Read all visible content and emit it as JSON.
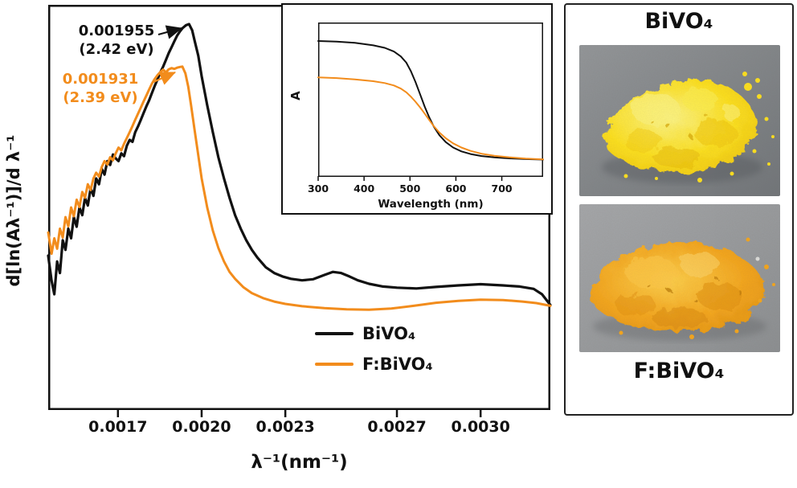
{
  "colors": {
    "black_series": "#111111",
    "orange_series": "#F28C1C",
    "frame": "#111111"
  },
  "main_chart": {
    "ylabel": "d[ln(Aλ⁻¹)]/d λ⁻¹",
    "xlabel": "λ⁻¹(nm⁻¹)",
    "annotations": {
      "black_peak_value": "0.001955",
      "black_peak_ev": "(2.42 eV)",
      "orange_peak_value": "0.001931",
      "orange_peak_ev": "(2.39 eV)"
    }
  },
  "inset_chart": {
    "ylabel": "A",
    "xlabel": "Wavelength (nm)"
  },
  "photo_panel": {
    "top_label": "BiVO₄",
    "bottom_label": "F:BiVO₄",
    "photos": [
      {
        "name": "BiVO₄ powder",
        "powder_color": "#FFE21E",
        "background_color": "#85888B"
      },
      {
        "name": "F:BiVO₄ powder",
        "powder_color": "#F5A51A",
        "background_color": "#97999C"
      }
    ]
  },
  "chart_data": [
    {
      "id": "main",
      "type": "line",
      "title": "",
      "xlabel": "λ⁻¹(nm⁻¹)",
      "ylabel": "d[ln(Aλ⁻¹)]/d λ⁻¹",
      "xlim": [
        0.00145,
        0.00325
      ],
      "ylim": [
        0,
        1.05
      ],
      "xticks": [
        0.0017,
        0.002,
        0.0023,
        0.0027,
        0.003
      ],
      "xtick_labels": [
        "0.0017",
        "0.0020",
        "0.0023",
        "0.0027",
        "0.0030"
      ],
      "grid": false,
      "legend_position": "inside lower right",
      "peaks": {
        "black": {
          "x": 0.001955,
          "band_gap_ev": 2.42
        },
        "orange": {
          "x": 0.001931,
          "band_gap_ev": 2.39
        }
      },
      "series": [
        {
          "name": "BiVO₄",
          "color": "#111111",
          "width": 3.2,
          "points": [
            [
              0.00145,
              0.4
            ],
            [
              0.001462,
              0.335
            ],
            [
              0.001472,
              0.3
            ],
            [
              0.001482,
              0.385
            ],
            [
              0.001492,
              0.355
            ],
            [
              0.001502,
              0.44
            ],
            [
              0.001512,
              0.415
            ],
            [
              0.001522,
              0.47
            ],
            [
              0.001532,
              0.445
            ],
            [
              0.001542,
              0.5
            ],
            [
              0.001552,
              0.475
            ],
            [
              0.001562,
              0.525
            ],
            [
              0.001572,
              0.505
            ],
            [
              0.001582,
              0.55
            ],
            [
              0.001592,
              0.53
            ],
            [
              0.001602,
              0.575
            ],
            [
              0.001612,
              0.555
            ],
            [
              0.001622,
              0.6
            ],
            [
              0.001632,
              0.585
            ],
            [
              0.001642,
              0.625
            ],
            [
              0.001652,
              0.61
            ],
            [
              0.001662,
              0.645
            ],
            [
              0.001672,
              0.635
            ],
            [
              0.001682,
              0.662
            ],
            [
              0.001692,
              0.652
            ],
            [
              0.001702,
              0.645
            ],
            [
              0.001712,
              0.665
            ],
            [
              0.001722,
              0.658
            ],
            [
              0.001732,
              0.685
            ],
            [
              0.001742,
              0.7
            ],
            [
              0.001752,
              0.695
            ],
            [
              0.001762,
              0.72
            ],
            [
              0.001772,
              0.735
            ],
            [
              0.001782,
              0.752
            ],
            [
              0.001792,
              0.77
            ],
            [
              0.001802,
              0.787
            ],
            [
              0.001812,
              0.803
            ],
            [
              0.001822,
              0.822
            ],
            [
              0.001832,
              0.84
            ],
            [
              0.001842,
              0.857
            ],
            [
              0.001852,
              0.875
            ],
            [
              0.001862,
              0.89
            ],
            [
              0.001872,
              0.907
            ],
            [
              0.001882,
              0.925
            ],
            [
              0.001892,
              0.94
            ],
            [
              0.001902,
              0.955
            ],
            [
              0.001912,
              0.97
            ],
            [
              0.001922,
              0.981
            ],
            [
              0.001932,
              0.99
            ],
            [
              0.001944,
              0.997
            ],
            [
              0.001955,
              1.0
            ],
            [
              0.001966,
              0.984
            ],
            [
              0.001976,
              0.954
            ],
            [
              0.001988,
              0.918
            ],
            [
              0.002,
              0.865
            ],
            [
              0.00202,
              0.79
            ],
            [
              0.00204,
              0.72
            ],
            [
              0.00206,
              0.655
            ],
            [
              0.00208,
              0.6
            ],
            [
              0.0021,
              0.55
            ],
            [
              0.00212,
              0.505
            ],
            [
              0.00214,
              0.47
            ],
            [
              0.00216,
              0.44
            ],
            [
              0.00218,
              0.415
            ],
            [
              0.0022,
              0.395
            ],
            [
              0.00223,
              0.37
            ],
            [
              0.00226,
              0.355
            ],
            [
              0.00229,
              0.346
            ],
            [
              0.00232,
              0.34
            ],
            [
              0.00236,
              0.336
            ],
            [
              0.0024,
              0.339
            ],
            [
              0.00244,
              0.35
            ],
            [
              0.00247,
              0.358
            ],
            [
              0.0025,
              0.355
            ],
            [
              0.00253,
              0.346
            ],
            [
              0.00256,
              0.336
            ],
            [
              0.0026,
              0.327
            ],
            [
              0.00265,
              0.32
            ],
            [
              0.0027,
              0.317
            ],
            [
              0.00277,
              0.315
            ],
            [
              0.00284,
              0.319
            ],
            [
              0.00292,
              0.323
            ],
            [
              0.003,
              0.326
            ],
            [
              0.00308,
              0.323
            ],
            [
              0.00314,
              0.32
            ],
            [
              0.00319,
              0.314
            ],
            [
              0.00322,
              0.3
            ],
            [
              0.00325,
              0.272
            ]
          ]
        },
        {
          "name": "F:BiVO₄",
          "color": "#F28C1C",
          "width": 3,
          "points": [
            [
              0.00145,
              0.46
            ],
            [
              0.001462,
              0.405
            ],
            [
              0.001472,
              0.445
            ],
            [
              0.001482,
              0.418
            ],
            [
              0.001492,
              0.47
            ],
            [
              0.001502,
              0.447
            ],
            [
              0.001512,
              0.5
            ],
            [
              0.001522,
              0.476
            ],
            [
              0.001532,
              0.525
            ],
            [
              0.001542,
              0.502
            ],
            [
              0.001552,
              0.545
            ],
            [
              0.001562,
              0.526
            ],
            [
              0.001572,
              0.565
            ],
            [
              0.001582,
              0.55
            ],
            [
              0.001592,
              0.585
            ],
            [
              0.001602,
              0.57
            ],
            [
              0.001612,
              0.6
            ],
            [
              0.001622,
              0.615
            ],
            [
              0.001632,
              0.605
            ],
            [
              0.001642,
              0.63
            ],
            [
              0.001652,
              0.645
            ],
            [
              0.001662,
              0.636
            ],
            [
              0.001672,
              0.655
            ],
            [
              0.001682,
              0.647
            ],
            [
              0.001692,
              0.665
            ],
            [
              0.001702,
              0.68
            ],
            [
              0.001712,
              0.673
            ],
            [
              0.001722,
              0.69
            ],
            [
              0.001732,
              0.705
            ],
            [
              0.001742,
              0.72
            ],
            [
              0.001752,
              0.736
            ],
            [
              0.001762,
              0.752
            ],
            [
              0.001772,
              0.768
            ],
            [
              0.001782,
              0.784
            ],
            [
              0.001792,
              0.8
            ],
            [
              0.001802,
              0.815
            ],
            [
              0.001812,
              0.831
            ],
            [
              0.001822,
              0.846
            ],
            [
              0.001832,
              0.858
            ],
            [
              0.001842,
              0.868
            ],
            [
              0.001852,
              0.876
            ],
            [
              0.001862,
              0.882
            ],
            [
              0.001872,
              0.875
            ],
            [
              0.001882,
              0.883
            ],
            [
              0.001892,
              0.886
            ],
            [
              0.001902,
              0.884
            ],
            [
              0.001912,
              0.887
            ],
            [
              0.001922,
              0.889
            ],
            [
              0.001931,
              0.89
            ],
            [
              0.001942,
              0.872
            ],
            [
              0.001952,
              0.838
            ],
            [
              0.001962,
              0.79
            ],
            [
              0.001974,
              0.73
            ],
            [
              0.001988,
              0.66
            ],
            [
              0.002,
              0.6
            ],
            [
              0.00202,
              0.525
            ],
            [
              0.00204,
              0.465
            ],
            [
              0.00206,
              0.42
            ],
            [
              0.00208,
              0.385
            ],
            [
              0.0021,
              0.358
            ],
            [
              0.00212,
              0.34
            ],
            [
              0.00215,
              0.318
            ],
            [
              0.00218,
              0.303
            ],
            [
              0.00222,
              0.29
            ],
            [
              0.00226,
              0.281
            ],
            [
              0.0023,
              0.275
            ],
            [
              0.00236,
              0.269
            ],
            [
              0.00244,
              0.264
            ],
            [
              0.00252,
              0.261
            ],
            [
              0.0026,
              0.26
            ],
            [
              0.00268,
              0.263
            ],
            [
              0.00276,
              0.27
            ],
            [
              0.00284,
              0.278
            ],
            [
              0.00292,
              0.283
            ],
            [
              0.003,
              0.286
            ],
            [
              0.00308,
              0.285
            ],
            [
              0.00315,
              0.281
            ],
            [
              0.0032,
              0.277
            ],
            [
              0.00325,
              0.27
            ]
          ]
        }
      ]
    },
    {
      "id": "inset",
      "type": "line",
      "title": "",
      "xlabel": "Wavelength (nm)",
      "ylabel": "A",
      "xlim": [
        300,
        790
      ],
      "ylim": [
        0,
        1
      ],
      "xticks": [
        300,
        400,
        500,
        600,
        700
      ],
      "xtick_labels": [
        "300",
        "400",
        "500",
        "600",
        "700"
      ],
      "grid": false,
      "series": [
        {
          "name": "BiVO₄",
          "color": "#111111",
          "width": 2,
          "points": [
            [
              300,
              0.88
            ],
            [
              340,
              0.876
            ],
            [
              380,
              0.868
            ],
            [
              420,
              0.852
            ],
            [
              445,
              0.836
            ],
            [
              465,
              0.812
            ],
            [
              480,
              0.78
            ],
            [
              492,
              0.74
            ],
            [
              502,
              0.685
            ],
            [
              512,
              0.615
            ],
            [
              522,
              0.535
            ],
            [
              532,
              0.455
            ],
            [
              542,
              0.385
            ],
            [
              552,
              0.325
            ],
            [
              564,
              0.27
            ],
            [
              578,
              0.225
            ],
            [
              594,
              0.19
            ],
            [
              612,
              0.165
            ],
            [
              632,
              0.148
            ],
            [
              656,
              0.135
            ],
            [
              684,
              0.126
            ],
            [
              716,
              0.12
            ],
            [
              752,
              0.115
            ],
            [
              790,
              0.112
            ]
          ]
        },
        {
          "name": "F:BiVO₄",
          "color": "#F28C1C",
          "width": 2,
          "points": [
            [
              300,
              0.645
            ],
            [
              340,
              0.64
            ],
            [
              380,
              0.632
            ],
            [
              420,
              0.62
            ],
            [
              445,
              0.608
            ],
            [
              465,
              0.592
            ],
            [
              480,
              0.572
            ],
            [
              492,
              0.548
            ],
            [
              502,
              0.52
            ],
            [
              512,
              0.487
            ],
            [
              522,
              0.45
            ],
            [
              532,
              0.41
            ],
            [
              542,
              0.368
            ],
            [
              552,
              0.328
            ],
            [
              564,
              0.287
            ],
            [
              578,
              0.25
            ],
            [
              594,
              0.217
            ],
            [
              612,
              0.19
            ],
            [
              632,
              0.168
            ],
            [
              656,
              0.15
            ],
            [
              684,
              0.137
            ],
            [
              716,
              0.127
            ],
            [
              752,
              0.119
            ],
            [
              790,
              0.113
            ]
          ]
        }
      ]
    }
  ]
}
